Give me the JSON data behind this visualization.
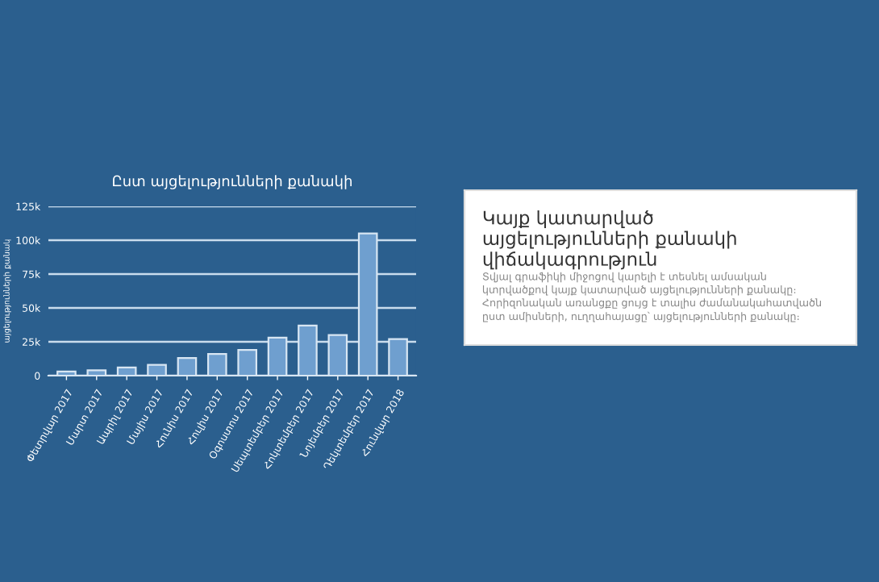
{
  "chart_data": [
    {
      "type": "bar",
      "title": "Ըստ այցելությունների քանակի",
      "ylabel": "այցելությունների քանակ",
      "categories": [
        "Փետրվար 2017",
        "Մարտ 2017",
        "Ապրիլ 2017",
        "Մայիս 2017",
        "Հունիս 2017",
        "Հուլիս 2017",
        "Օգոստոս 2017",
        "Սեպտեմբեր 2017",
        "Հոկտեմբեր 2017",
        "Նոյեմբեր 2017",
        "Դեկտեմբեր 2017",
        "Հունվար 2018"
      ],
      "values": [
        3000,
        4000,
        6000,
        8000,
        13000,
        16000,
        19000,
        28000,
        37000,
        30000,
        105000,
        27000
      ],
      "color": "#6f9fcf",
      "ylim": [
        0,
        125000
      ],
      "yticks": [
        {
          "value": 0,
          "label": "0"
        },
        {
          "value": 25000,
          "label": "25k"
        },
        {
          "value": 50000,
          "label": "50k"
        },
        {
          "value": 75000,
          "label": "75k"
        },
        {
          "value": 100000,
          "label": "100k"
        },
        {
          "value": 125000,
          "label": "125k"
        }
      ],
      "grid": "y"
    },
    {
      "type": "other",
      "title": "Կայք կատարված այցելությունների քանակի վիճակագրություն",
      "annotations": [
        "Տվյալ գրաֆիկի միջոցով կարելի է տեսնել ամսական կտրվածքով կայք կատարված այցելությունների քանակը։ Հորիզոնական առանցքը ցույց է տալիս ժամանակահատվածն ըստ ամիսների, ուղղահայացը՝ այցելությունների քանակը։"
      ]
    }
  ]
}
